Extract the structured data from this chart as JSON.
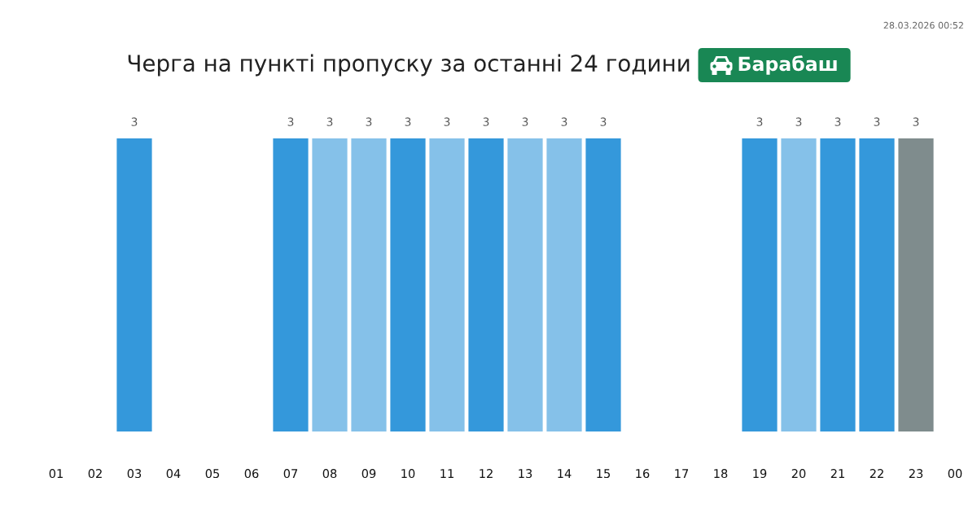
{
  "chart_data": {
    "type": "bar",
    "title": "Черга на пункті пропуску за останні 24 години",
    "subtitle": "Барабаш",
    "annotations": [
      "28.03.2026 00:52"
    ],
    "categories": [
      "01",
      "02",
      "03",
      "04",
      "05",
      "06",
      "07",
      "08",
      "09",
      "10",
      "11",
      "12",
      "13",
      "14",
      "15",
      "16",
      "17",
      "18",
      "19",
      "20",
      "21",
      "22",
      "23",
      "00"
    ],
    "values": [
      null,
      null,
      3,
      null,
      null,
      null,
      3,
      3,
      3,
      3,
      3,
      3,
      3,
      3,
      3,
      null,
      null,
      null,
      3,
      3,
      3,
      3,
      3,
      null
    ],
    "colors": [
      null,
      null,
      "#3498db",
      null,
      null,
      null,
      "#3498db",
      "#85c1e9",
      "#85c1e9",
      "#3498db",
      "#85c1e9",
      "#3498db",
      "#85c1e9",
      "#85c1e9",
      "#3498db",
      null,
      null,
      null,
      "#3498db",
      "#85c1e9",
      "#3498db",
      "#3498db",
      "#7f8c8d",
      null
    ],
    "data_labels": true,
    "tick_labels": "x"
  }
}
